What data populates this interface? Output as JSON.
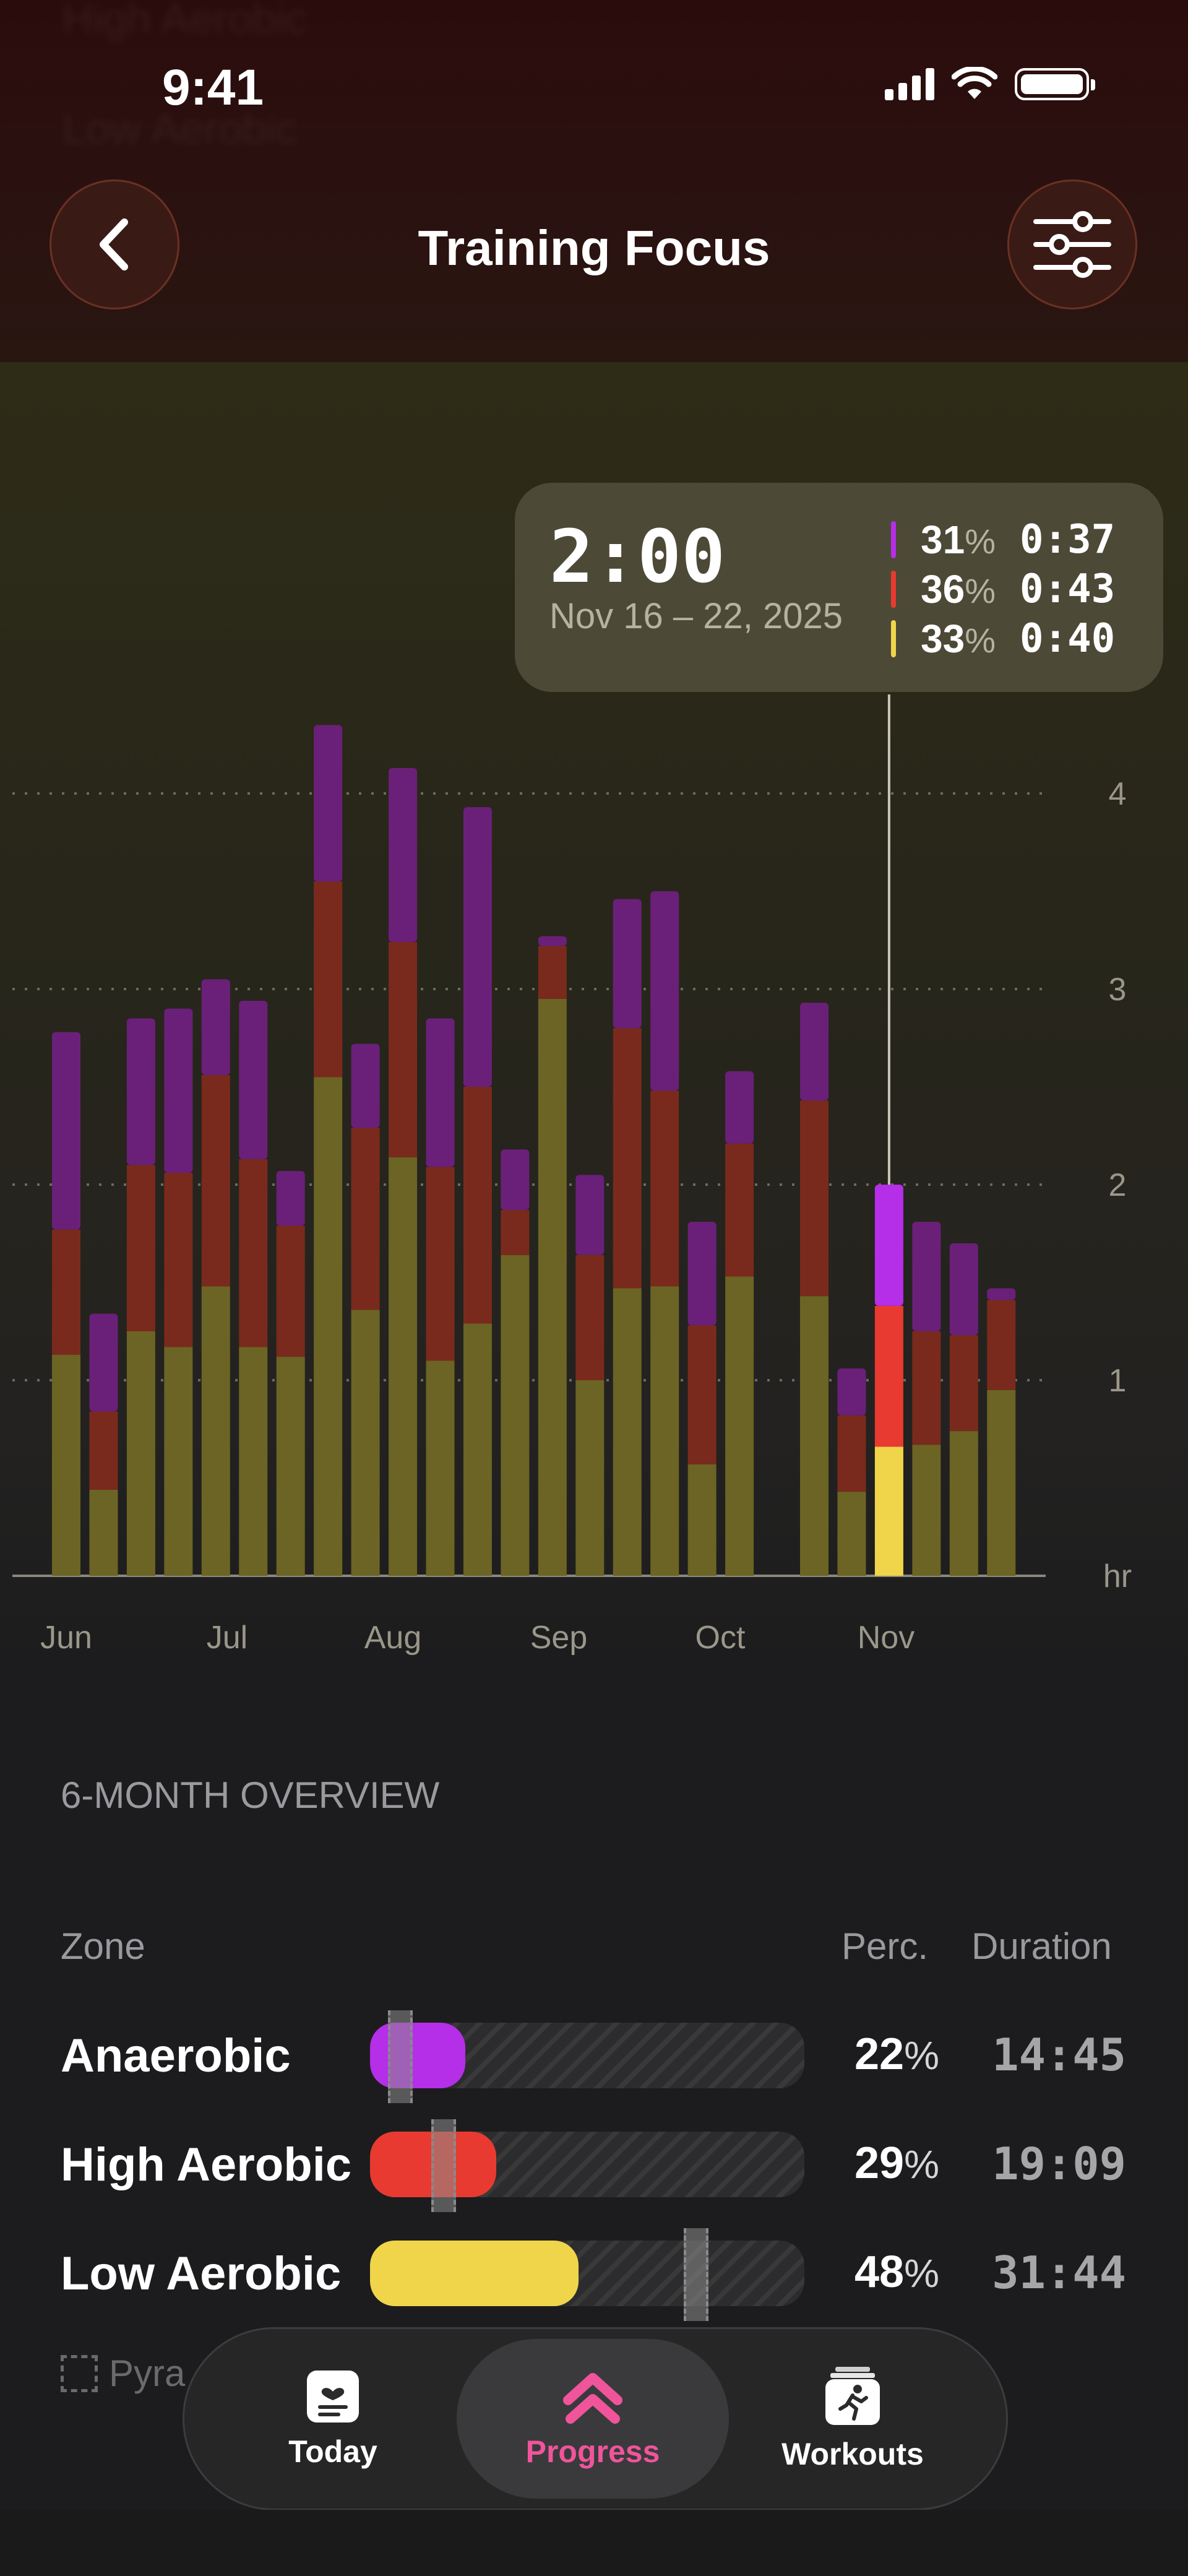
{
  "status_bar": {
    "time": "9:41"
  },
  "header": {
    "title": "Training Focus",
    "back_icon": "chevron-left-icon",
    "filter_icon": "sliders-icon"
  },
  "background_ghost": [
    "High Aerobic",
    "Low Aerobic"
  ],
  "colors": {
    "anaerobic": "#b52ee8",
    "high_aerobic": "#e83a30",
    "low_aerobic": "#f0d54a",
    "anaerobic_dim": "#6a2078",
    "high_aerobic_dim": "#7a2a1c",
    "low_aerobic_dim": "#6b6424",
    "accent": "#f0549a"
  },
  "tooltip": {
    "total": "2:00",
    "date_range": "Nov 16 – 22, 2025",
    "rows": [
      {
        "zone": "anaerobic",
        "pct": "31",
        "pct_sign": "%",
        "duration": "0:37"
      },
      {
        "zone": "high_aerobic",
        "pct": "36",
        "pct_sign": "%",
        "duration": "0:43"
      },
      {
        "zone": "low_aerobic",
        "pct": "33",
        "pct_sign": "%",
        "duration": "0:40"
      }
    ]
  },
  "chart_data": {
    "type": "bar",
    "stacked": true,
    "unit": "hr",
    "y_ticks": [
      "4",
      "3",
      "2",
      "1",
      "hr"
    ],
    "ylim": [
      0,
      4.4
    ],
    "x_labels": [
      "Jun",
      "Jul",
      "Aug",
      "Sep",
      "Oct",
      "Nov"
    ],
    "selected_index": 22,
    "series": [
      {
        "zone": "low_aerobic",
        "values": [
          1.13,
          0.44,
          1.25,
          1.17,
          1.48,
          1.17,
          1.12,
          2.55,
          1.36,
          2.14,
          1.1,
          1.29,
          1.64,
          2.95,
          1.0,
          1.47,
          1.48,
          0.57,
          1.53,
          null,
          1.43,
          0.43,
          0.66,
          0.67,
          0.74,
          0.95
        ]
      },
      {
        "zone": "high_aerobic",
        "values": [
          0.64,
          0.4,
          0.85,
          0.89,
          1.08,
          0.96,
          0.67,
          1.0,
          0.93,
          1.1,
          0.99,
          1.21,
          0.23,
          0.27,
          0.64,
          1.33,
          1.0,
          0.71,
          0.68,
          null,
          1.0,
          0.39,
          0.72,
          0.58,
          0.49,
          0.46
        ]
      },
      {
        "zone": "anaerobic",
        "values": [
          1.01,
          0.5,
          0.75,
          0.84,
          0.49,
          0.81,
          0.28,
          0.8,
          0.43,
          0.89,
          0.76,
          1.43,
          0.31,
          0.05,
          0.41,
          0.66,
          1.02,
          0.53,
          0.37,
          null,
          0.5,
          0.24,
          0.62,
          0.56,
          0.47,
          0.06
        ]
      }
    ]
  },
  "overview": {
    "title": "6-MONTH OVERVIEW",
    "col_zone": "Zone",
    "col_perc": "Perc.",
    "col_duration": "Duration",
    "rows": [
      {
        "name": "Anaerobic",
        "zone": "anaerobic",
        "percent": 22,
        "pct": "22",
        "pct_sign": "%",
        "duration": "14:45",
        "marker": 0.07
      },
      {
        "name": "High Aerobic",
        "zone": "high_aerobic",
        "percent": 29,
        "pct": "29",
        "pct_sign": "%",
        "duration": "19:09",
        "marker": 0.17
      },
      {
        "name": "Low Aerobic",
        "zone": "low_aerobic",
        "percent": 48,
        "pct": "48",
        "pct_sign": "%",
        "duration": "31:44",
        "marker": 0.75
      }
    ],
    "legend_label": "Pyra"
  },
  "tabs": [
    {
      "label": "Today",
      "icon": "clipboard-heart-icon",
      "active": false
    },
    {
      "label": "Progress",
      "icon": "double-chevron-up-icon",
      "active": true
    },
    {
      "label": "Workouts",
      "icon": "running-figure-icon",
      "active": false
    }
  ]
}
